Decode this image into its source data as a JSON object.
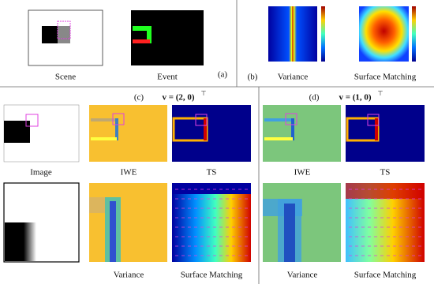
{
  "panel_a": {
    "label": "(a)",
    "captions": [
      "Scene",
      "Event"
    ]
  },
  "panel_b": {
    "label": "(b)",
    "captions": [
      "Variance",
      "Surface Matching"
    ]
  },
  "panel_c": {
    "label": "(c)",
    "velocity": "v = (2, 0)",
    "transpose": "⊤",
    "captions": [
      "Image",
      "IWE",
      "TS",
      "Variance",
      "Surface Matching"
    ]
  },
  "panel_d": {
    "label": "(d)",
    "velocity": "v = (1, 0)",
    "transpose": "⊤",
    "captions": [
      "IWE",
      "TS",
      "Variance",
      "Surface Matching"
    ]
  }
}
